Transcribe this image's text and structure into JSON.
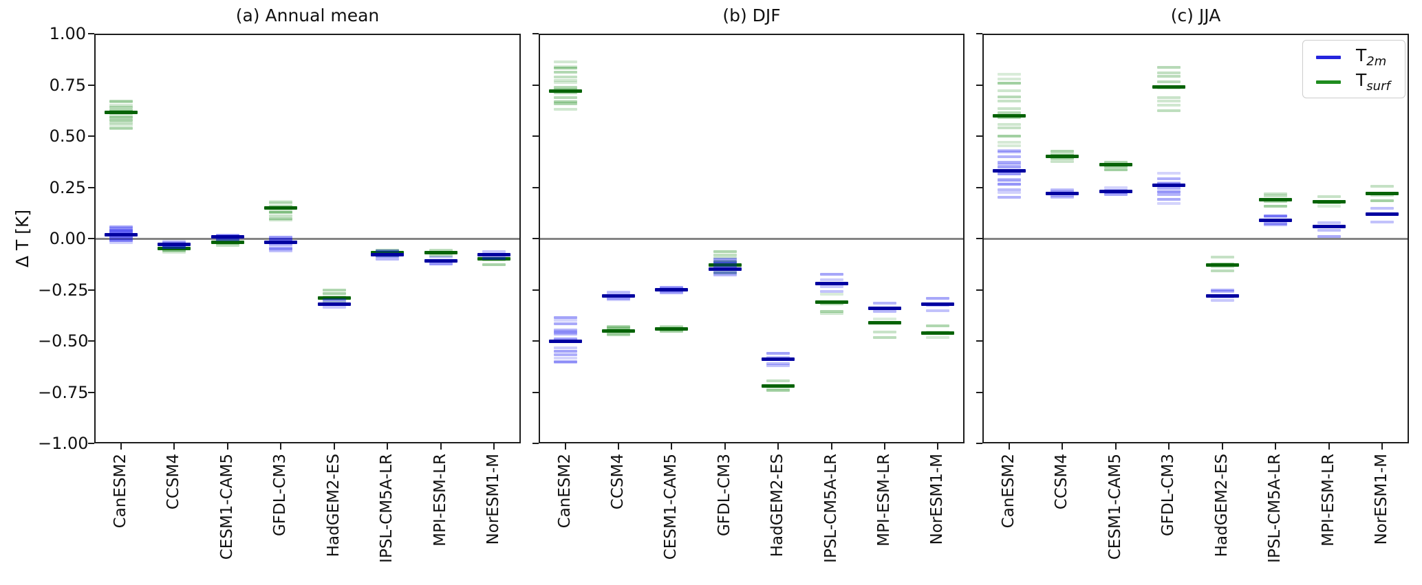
{
  "figure": {
    "ylabel": "Δ T [K]",
    "background": "#ffffff",
    "spine_color": "#1c1c1c",
    "zero_line_color": "#848484",
    "ylim": [
      -1.0,
      1.0
    ],
    "ytick_values": [
      1.0,
      0.75,
      0.5,
      0.25,
      0.0,
      -0.25,
      -0.5,
      -0.75,
      -1.0
    ],
    "ytick_labels": [
      "1.00",
      "0.75",
      "0.50",
      "0.25",
      "0.00",
      "−0.25",
      "−0.50",
      "−0.75",
      "−1.00"
    ],
    "legend": {
      "position": "upper-right-panel-c",
      "items": [
        {
          "base": "T",
          "sub": "2m",
          "color": "#2525dd"
        },
        {
          "base": "T",
          "sub": "surf",
          "color": "#1f8c1f"
        }
      ]
    },
    "series_style": {
      "T_2m": {
        "member_color": "#0000ee",
        "mean_color": "#0000a0"
      },
      "T_surf": {
        "member_color": "#1e8c1e",
        "mean_color": "#066306"
      }
    }
  },
  "chart_data": [
    {
      "type": "scatter",
      "title": "(a) Annual mean",
      "ylabel": "Δ T [K]",
      "ylim": [
        -1.0,
        1.0
      ],
      "grid": false,
      "categories": [
        "CanESM2",
        "CCSM4",
        "CESM1-CAM5",
        "GFDL-CM3",
        "HadGEM2-ES",
        "IPSL-CM5A-LR",
        "MPI-ESM-LR",
        "NorESM1-M"
      ],
      "n_members": [
        14,
        6,
        5,
        9,
        4,
        5,
        3,
        3
      ],
      "series": [
        {
          "name": "T_2m",
          "means": [
            0.02,
            -0.03,
            0.01,
            -0.02,
            -0.32,
            -0.08,
            -0.11,
            -0.08
          ],
          "spread_min": [
            -0.02,
            -0.05,
            -0.01,
            -0.06,
            -0.34,
            -0.1,
            -0.13,
            -0.11
          ],
          "spread_max": [
            0.06,
            -0.01,
            0.02,
            0.01,
            -0.29,
            -0.06,
            -0.09,
            -0.06
          ]
        },
        {
          "name": "T_surf",
          "means": [
            0.615,
            -0.05,
            -0.02,
            0.15,
            -0.29,
            -0.07,
            -0.07,
            -0.1
          ],
          "spread_min": [
            0.53,
            -0.07,
            -0.035,
            0.08,
            -0.315,
            -0.09,
            -0.09,
            -0.13
          ],
          "spread_max": [
            0.68,
            -0.03,
            0.0,
            0.19,
            -0.245,
            -0.05,
            -0.05,
            -0.07
          ]
        }
      ]
    },
    {
      "type": "scatter",
      "title": "(b) DJF",
      "ylabel": "Δ T [K]",
      "ylim": [
        -1.0,
        1.0
      ],
      "grid": false,
      "categories": [
        "CanESM2",
        "CCSM4",
        "CESM1-CAM5",
        "GFDL-CM3",
        "HadGEM2-ES",
        "IPSL-CM5A-LR",
        "MPI-ESM-LR",
        "NorESM1-M"
      ],
      "n_members": [
        14,
        6,
        5,
        9,
        4,
        5,
        3,
        3
      ],
      "series": [
        {
          "name": "T_2m",
          "means": [
            -0.5,
            -0.28,
            -0.25,
            -0.15,
            -0.59,
            -0.22,
            -0.34,
            -0.32
          ],
          "spread_min": [
            -0.62,
            -0.3,
            -0.265,
            -0.18,
            -0.63,
            -0.26,
            -0.37,
            -0.36
          ],
          "spread_max": [
            -0.38,
            -0.26,
            -0.235,
            -0.1,
            -0.555,
            -0.17,
            -0.3,
            -0.28
          ]
        },
        {
          "name": "T_surf",
          "means": [
            0.72,
            -0.45,
            -0.44,
            -0.13,
            -0.72,
            -0.31,
            -0.41,
            -0.46
          ],
          "spread_min": [
            0.63,
            -0.475,
            -0.455,
            -0.18,
            -0.75,
            -0.38,
            -0.51,
            -0.49
          ],
          "spread_max": [
            0.87,
            -0.425,
            -0.425,
            -0.06,
            -0.69,
            -0.27,
            -0.37,
            -0.42
          ]
        }
      ]
    },
    {
      "type": "scatter",
      "title": "(c) JJA",
      "ylabel": "Δ T [K]",
      "ylim": [
        -1.0,
        1.0
      ],
      "grid": false,
      "categories": [
        "CanESM2",
        "CCSM4",
        "CESM1-CAM5",
        "GFDL-CM3",
        "HadGEM2-ES",
        "IPSL-CM5A-LR",
        "MPI-ESM-LR",
        "NorESM1-M"
      ],
      "n_members": [
        14,
        6,
        5,
        9,
        4,
        5,
        3,
        3
      ],
      "series": [
        {
          "name": "T_2m",
          "means": [
            0.33,
            0.22,
            0.23,
            0.26,
            -0.28,
            0.09,
            0.06,
            0.12
          ],
          "spread_min": [
            0.2,
            0.2,
            0.21,
            0.17,
            -0.31,
            0.06,
            0.0,
            0.08
          ],
          "spread_max": [
            0.44,
            0.24,
            0.25,
            0.32,
            -0.24,
            0.12,
            0.1,
            0.16
          ]
        },
        {
          "name": "T_surf",
          "means": [
            0.6,
            0.4,
            0.36,
            0.74,
            -0.13,
            0.19,
            0.18,
            0.22
          ],
          "spread_min": [
            0.44,
            0.37,
            0.33,
            0.6,
            -0.17,
            0.15,
            0.14,
            0.18
          ],
          "spread_max": [
            0.82,
            0.43,
            0.38,
            0.86,
            -0.09,
            0.23,
            0.21,
            0.26
          ]
        }
      ]
    }
  ]
}
